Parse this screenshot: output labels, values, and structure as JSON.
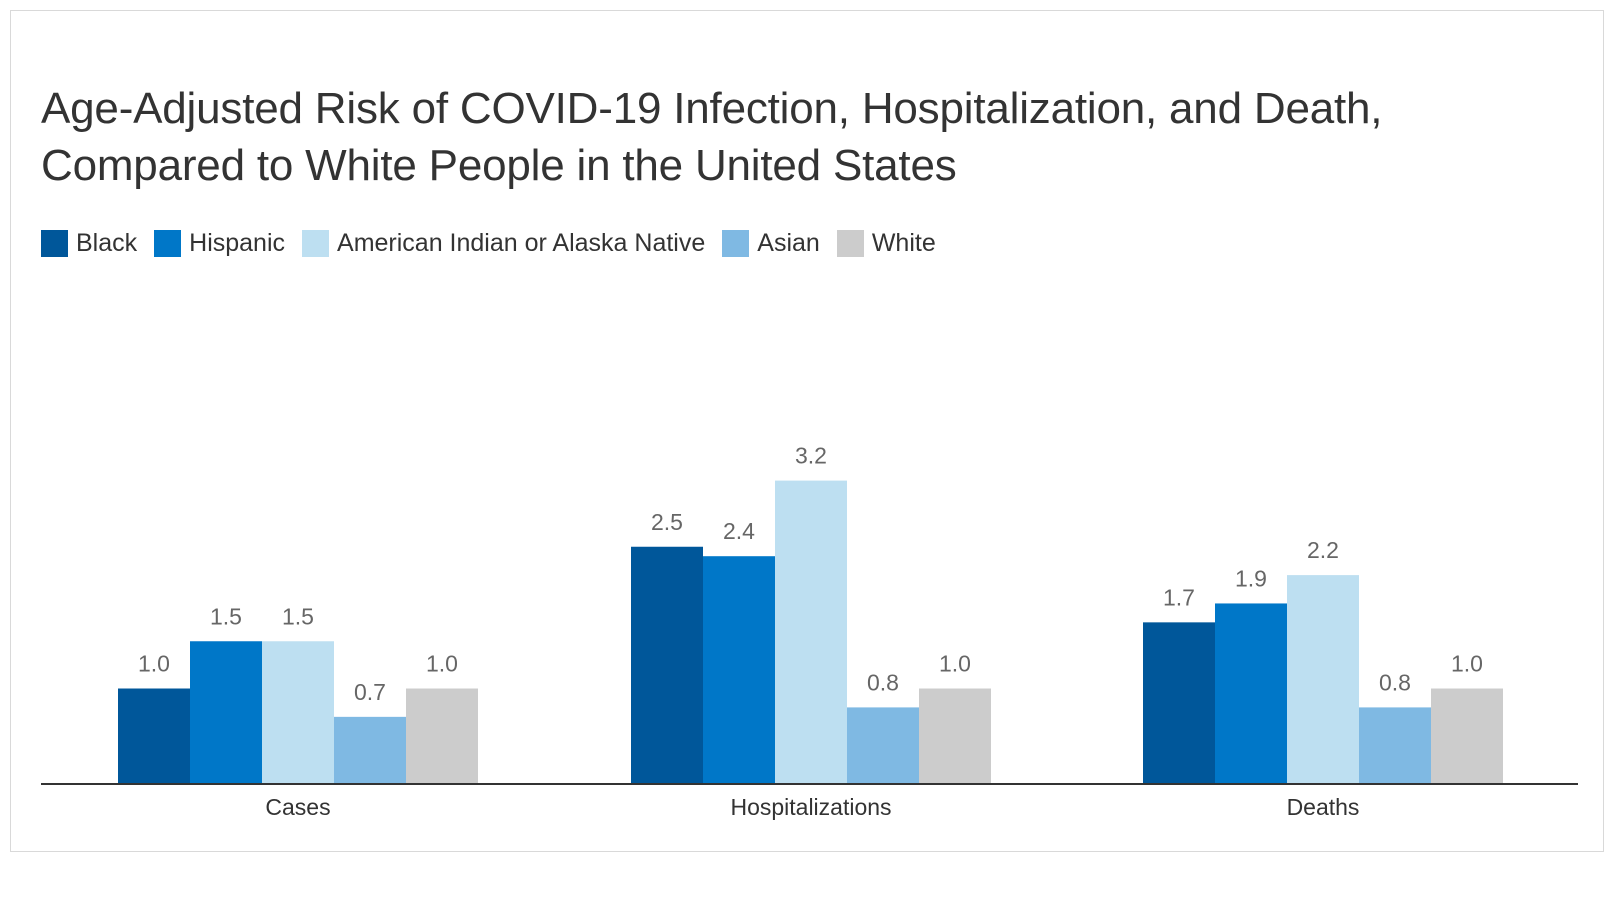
{
  "chart_data": {
    "type": "bar",
    "title": "Age-Adjusted Risk of COVID-19 Infection, Hospitalization, and Death, Compared to White People in the United States",
    "categories": [
      "Cases",
      "Hospitalizations",
      "Deaths"
    ],
    "series": [
      {
        "name": "Black",
        "color": "#00579a",
        "values": [
          1.0,
          2.5,
          1.7
        ],
        "labels": [
          "1.0",
          "2.5",
          "1.7"
        ]
      },
      {
        "name": "Hispanic",
        "color": "#0077c8",
        "values": [
          1.5,
          2.4,
          1.9
        ],
        "labels": [
          "1.5",
          "2.4",
          "1.9"
        ]
      },
      {
        "name": "American Indian or Alaska Native",
        "color": "#bddff1",
        "values": [
          1.5,
          3.2,
          2.2
        ],
        "labels": [
          "1.5",
          "3.2",
          "2.2"
        ]
      },
      {
        "name": "Asian",
        "color": "#7fb9e3",
        "values": [
          0.7,
          0.8,
          0.8
        ],
        "labels": [
          "0.7",
          "0.8",
          "0.8"
        ]
      },
      {
        "name": "White",
        "color": "#cccccc",
        "values": [
          1.0,
          1.0,
          1.0
        ],
        "labels": [
          "1.0",
          "1.0",
          "1.0"
        ]
      }
    ],
    "ylim": [
      0,
      5.5
    ],
    "grid": false,
    "legend": "top-left",
    "xlabel": "",
    "ylabel": ""
  }
}
